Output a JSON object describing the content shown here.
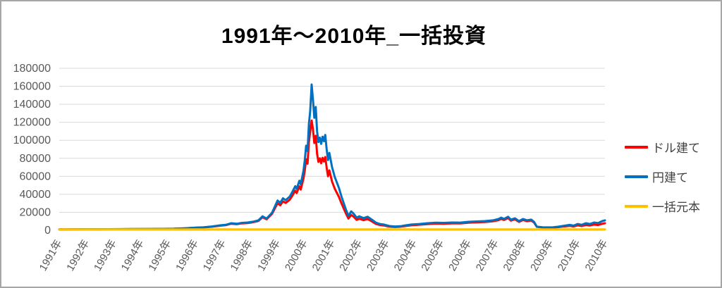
{
  "chart_data": {
    "type": "line",
    "title": "1991年～2010年_一括投資",
    "xlabel": "",
    "ylabel": "",
    "ylim": [
      0,
      180000
    ],
    "y_ticks": [
      0,
      20000,
      40000,
      60000,
      80000,
      100000,
      120000,
      140000,
      160000,
      180000
    ],
    "x_tick_positions": [
      1991,
      1992,
      1993,
      1994,
      1995,
      1996,
      1997,
      1998,
      1999,
      2000,
      2001,
      2002,
      2003,
      2004,
      2005,
      2006,
      2007,
      2008,
      2009,
      2010,
      2011
    ],
    "x_tick_labels": [
      "1991年",
      "1992年",
      "1993年",
      "1994年",
      "1995年",
      "1996年",
      "1997年",
      "1998年",
      "1999年",
      "2000年",
      "2001年",
      "2002年",
      "2003年",
      "2004年",
      "2005年",
      "2006年",
      "2007年",
      "2008年",
      "2009年",
      "2010年",
      "2010年"
    ],
    "grid": "horizontal",
    "legend_position": "right",
    "x": [
      1991.0,
      1991.3,
      1991.6,
      1992.0,
      1992.4,
      1992.8,
      1993.2,
      1993.6,
      1994.0,
      1994.4,
      1994.8,
      1995.2,
      1995.6,
      1996.0,
      1996.3,
      1996.6,
      1996.9,
      1997.1,
      1997.3,
      1997.5,
      1997.7,
      1997.9,
      1998.1,
      1998.3,
      1998.45,
      1998.6,
      1998.8,
      1999.0,
      1999.1,
      1999.2,
      1999.3,
      1999.45,
      1999.55,
      1999.65,
      1999.7,
      1999.8,
      1999.85,
      1999.95,
      2000.0,
      2000.05,
      2000.1,
      2000.15,
      2000.2,
      2000.25,
      2000.3,
      2000.35,
      2000.4,
      2000.45,
      2000.5,
      2000.55,
      2000.6,
      2000.65,
      2000.7,
      2000.75,
      2000.8,
      2000.85,
      2000.9,
      2001.0,
      2001.1,
      2001.25,
      2001.35,
      2001.5,
      2001.6,
      2001.7,
      2001.8,
      2001.9,
      2002.0,
      2002.15,
      2002.3,
      2002.45,
      2002.6,
      2002.75,
      2002.9,
      2003.1,
      2003.3,
      2003.5,
      2003.7,
      2003.9,
      2004.2,
      2004.5,
      2004.8,
      2005.1,
      2005.4,
      2005.7,
      2006.0,
      2006.3,
      2006.6,
      2006.9,
      2007.1,
      2007.2,
      2007.3,
      2007.45,
      2007.55,
      2007.7,
      2007.85,
      2008.0,
      2008.15,
      2008.3,
      2008.4,
      2008.5,
      2008.7,
      2008.9,
      2009.1,
      2009.3,
      2009.5,
      2009.7,
      2009.85,
      2010.0,
      2010.15,
      2010.3,
      2010.45,
      2010.6,
      2010.75,
      2010.9,
      2011.0
    ],
    "series": [
      {
        "id": "dollar",
        "name": "ドル建て",
        "color": "#FF0000",
        "values": [
          1000,
          1040,
          1080,
          1120,
          1090,
          1160,
          1210,
          1250,
          1340,
          1430,
          1520,
          1660,
          2080,
          2820,
          3180,
          3920,
          5100,
          5600,
          7250,
          6700,
          7650,
          8000,
          8900,
          10300,
          14500,
          12200,
          18300,
          30000,
          27800,
          32200,
          30400,
          34000,
          38800,
          44000,
          41300,
          48800,
          45200,
          57500,
          66500,
          79000,
          74000,
          98000,
          110000,
          122000,
          112000,
          97000,
          105000,
          85000,
          76000,
          80000,
          74500,
          80500,
          76500,
          81500,
          69500,
          60000,
          66500,
          54000,
          46000,
          37000,
          29500,
          19000,
          13000,
          17000,
          14800,
          11500,
          12800,
          11200,
          12500,
          10000,
          7200,
          5900,
          5300,
          4000,
          3600,
          3900,
          4800,
          5500,
          6200,
          6900,
          7400,
          7300,
          7700,
          7600,
          8400,
          8800,
          9200,
          10000,
          11300,
          12700,
          11400,
          13600,
          10700,
          12100,
          9300,
          11400,
          10000,
          10800,
          8600,
          3800,
          3200,
          3000,
          3000,
          3500,
          4200,
          4900,
          4200,
          5500,
          4700,
          5900,
          5300,
          6300,
          5800,
          7200,
          7800
        ]
      },
      {
        "id": "yen",
        "name": "円建て",
        "color": "#0070C0",
        "values": [
          1000,
          1050,
          1100,
          1150,
          1120,
          1200,
          1250,
          1300,
          1400,
          1500,
          1600,
          1750,
          2200,
          3000,
          3400,
          4200,
          5500,
          6000,
          7800,
          7200,
          8200,
          8600,
          9500,
          11000,
          15500,
          13000,
          19500,
          33000,
          30500,
          35500,
          33500,
          37500,
          43000,
          49000,
          46000,
          55000,
          51000,
          66000,
          78000,
          94000,
          88000,
          118000,
          133000,
          162000,
          145000,
          125000,
          137000,
          110000,
          98000,
          103000,
          96000,
          104000,
          99000,
          106000,
          90000,
          78000,
          86000,
          70000,
          59000,
          47000,
          37000,
          23500,
          16000,
          21000,
          18000,
          14000,
          15500,
          13500,
          15000,
          12000,
          8600,
          7000,
          6300,
          4700,
          4200,
          4500,
          5500,
          6300,
          7000,
          7800,
          8400,
          8200,
          8600,
          8500,
          9400,
          9800,
          10200,
          11000,
          12500,
          14000,
          12500,
          15000,
          11800,
          13300,
          10200,
          12500,
          11000,
          11800,
          9400,
          4000,
          3400,
          3200,
          3300,
          4000,
          5000,
          6000,
          5200,
          7000,
          6000,
          7800,
          7000,
          8600,
          8000,
          10200,
          11000
        ]
      },
      {
        "id": "principal",
        "name": "一括元本",
        "color": "#FFC000",
        "x": [
          1991.0,
          2011.0
        ],
        "values": [
          1000,
          1000
        ]
      }
    ]
  }
}
